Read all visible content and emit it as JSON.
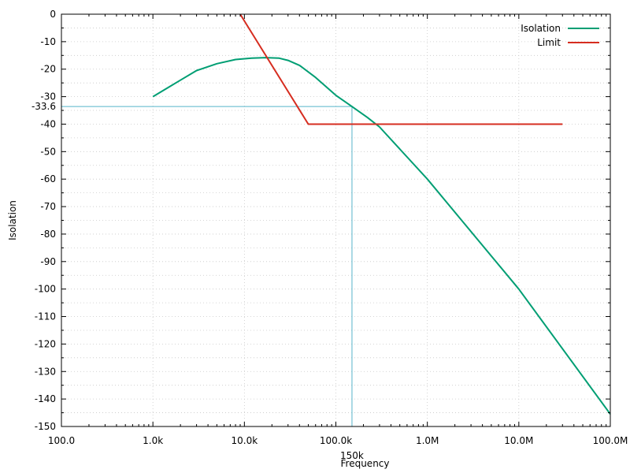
{
  "chart_data": {
    "type": "line",
    "title": "",
    "xlabel": "Frequency",
    "ylabel": "Isolation",
    "xscale": "log",
    "xlim": [
      100,
      100000000
    ],
    "ylim": [
      -150,
      0
    ],
    "grid": true,
    "legend_position": "top-right",
    "x_tick_values": [
      100,
      1000,
      10000,
      100000,
      1000000,
      10000000,
      100000000
    ],
    "x_tick_labels": [
      "100.0",
      "1.0k",
      "10.0k",
      "100.0k",
      "1.0M",
      "10.0M",
      "100.0M"
    ],
    "y_tick_values": [
      0,
      -10,
      -20,
      -30,
      -40,
      -50,
      -60,
      -70,
      -80,
      -90,
      -100,
      -110,
      -120,
      -130,
      -140,
      -150
    ],
    "y_tick_labels": [
      "0",
      "-10",
      "-20",
      "-30",
      "-40",
      "-50",
      "-60",
      "-70",
      "-80",
      "-90",
      "-100",
      "-110",
      "-120",
      "-130",
      "-140",
      "-150"
    ],
    "series": [
      {
        "name": "Isolation",
        "color": "#009e73",
        "x": [
          1000,
          1500,
          2000,
          3000,
          5000,
          8000,
          12000,
          17000,
          24000,
          30000,
          40000,
          60000,
          100000,
          150000,
          220000,
          300000,
          1000000,
          10000000,
          100000000
        ],
        "y": [
          -30,
          -26.5,
          -24,
          -20.5,
          -18,
          -16.5,
          -16,
          -15.8,
          -16,
          -16.8,
          -18.6,
          -23,
          -29.5,
          -33.6,
          -37.5,
          -41,
          -60,
          -100,
          -145.5
        ]
      },
      {
        "name": "Limit",
        "color": "#d62d20",
        "x": [
          9000,
          50000,
          30000000
        ],
        "y": [
          0,
          -40,
          -40
        ]
      }
    ],
    "annotations": [
      {
        "type": "hline",
        "y": -33.6,
        "label": "-33.6",
        "color": "#56b4c9"
      },
      {
        "type": "vline",
        "x": 150000,
        "label": "150k",
        "color": "#56b4c9"
      }
    ]
  }
}
